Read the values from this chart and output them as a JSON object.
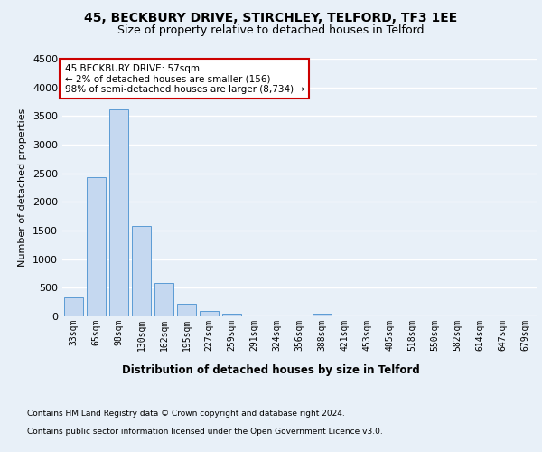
{
  "title1": "45, BECKBURY DRIVE, STIRCHLEY, TELFORD, TF3 1EE",
  "title2": "Size of property relative to detached houses in Telford",
  "xlabel": "Distribution of detached houses by size in Telford",
  "ylabel": "Number of detached properties",
  "categories": [
    "33sqm",
    "65sqm",
    "98sqm",
    "130sqm",
    "162sqm",
    "195sqm",
    "227sqm",
    "259sqm",
    "291sqm",
    "324sqm",
    "356sqm",
    "388sqm",
    "421sqm",
    "453sqm",
    "485sqm",
    "518sqm",
    "550sqm",
    "582sqm",
    "614sqm",
    "647sqm",
    "679sqm"
  ],
  "values": [
    330,
    2430,
    3620,
    1580,
    590,
    220,
    95,
    55,
    0,
    0,
    0,
    55,
    0,
    0,
    0,
    0,
    0,
    0,
    0,
    0,
    0
  ],
  "bar_color": "#c5d8f0",
  "bar_edge_color": "#5b9bd5",
  "annotation_box_text": "45 BECKBURY DRIVE: 57sqm\n← 2% of detached houses are smaller (156)\n98% of semi-detached houses are larger (8,734) →",
  "annotation_box_color": "#ffffff",
  "annotation_box_edge_color": "#cc0000",
  "ylim": [
    0,
    4500
  ],
  "yticks": [
    0,
    500,
    1000,
    1500,
    2000,
    2500,
    3000,
    3500,
    4000,
    4500
  ],
  "footnote1": "Contains HM Land Registry data © Crown copyright and database right 2024.",
  "footnote2": "Contains public sector information licensed under the Open Government Licence v3.0.",
  "bg_color": "#e8f0f8",
  "plot_bg_color": "#e8f0f8",
  "grid_color": "#ffffff",
  "title1_fontsize": 10,
  "title2_fontsize": 9,
  "xlabel_fontsize": 8.5,
  "ylabel_fontsize": 8
}
